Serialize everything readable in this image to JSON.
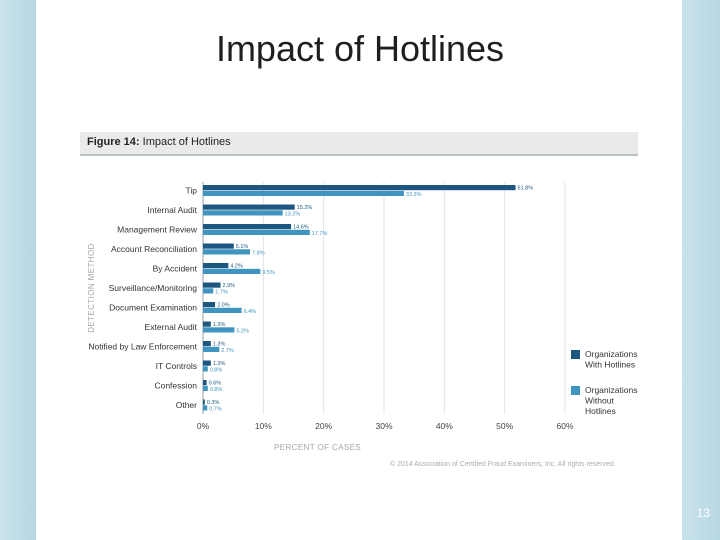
{
  "slide": {
    "title": "Impact of Hotlines",
    "page_number": "13"
  },
  "figure": {
    "label": "Figure 14:",
    "title": "Impact of Hotlines",
    "copyright": "© 2014 Association of Certified Fraud Examiners, Inc. All rights reserved."
  },
  "chart_data": {
    "type": "bar",
    "orientation": "horizontal",
    "title": "Impact of Hotlines",
    "xlabel": "PERCENT OF CASES",
    "ylabel": "DETECTION METHOD",
    "xlim": [
      0,
      60
    ],
    "xticks": [
      "0%",
      "10%",
      "20%",
      "30%",
      "40%",
      "50%",
      "60%"
    ],
    "grid": true,
    "legend_position": "right",
    "categories": [
      "Tip",
      "Internal Audit",
      "Management Review",
      "Account Reconciliation",
      "By Accident",
      "Surveillance/Monitoring",
      "Document Examination",
      "External Audit",
      "Notified by Law Enforcement",
      "IT Controls",
      "Confession",
      "Other"
    ],
    "series": [
      {
        "name": "Organizations With Hotlines",
        "legend_lines": [
          "Organizations",
          "With Hotlines"
        ],
        "color": "#1d5780",
        "values": [
          51.8,
          15.2,
          14.6,
          5.1,
          4.2,
          2.9,
          2.0,
          1.3,
          1.3,
          1.3,
          0.6,
          0.3
        ],
        "labels": [
          "51.8%",
          "15.2%",
          "14.6%",
          "5.1%",
          "4.2%",
          "2.9%",
          "2.0%",
          "1.3%",
          "1.3%",
          "1.3%",
          "0.6%",
          "0.3%"
        ]
      },
      {
        "name": "Organizations Without Hotlines",
        "legend_lines": [
          "Organizations",
          "Without",
          "Hotlines"
        ],
        "color": "#3f95bf",
        "values": [
          33.3,
          13.2,
          17.7,
          7.8,
          9.5,
          1.7,
          6.4,
          5.2,
          2.7,
          0.8,
          0.8,
          0.7
        ],
        "labels": [
          "33.3%",
          "13.2%",
          "17.7%",
          "7.8%",
          "9.5%",
          "1.7%",
          "6.4%",
          "5.2%",
          "2.7%",
          "0.8%",
          "0.8%",
          "0.7%"
        ]
      }
    ]
  }
}
